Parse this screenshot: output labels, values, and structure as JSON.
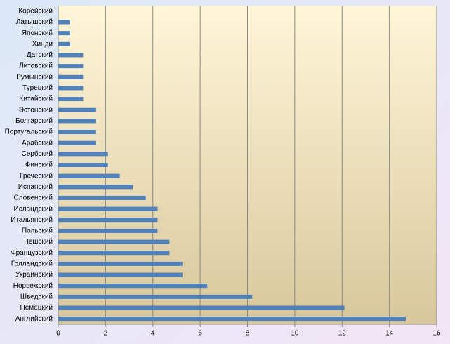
{
  "chart_data": {
    "type": "bar",
    "orientation": "horizontal",
    "categories": [
      "Корейский",
      "Латышский",
      "Японский",
      "Хинди",
      "Датский",
      "Литовский",
      "Румынский",
      "Турецкий",
      "Китайский",
      "Эстонский",
      "Болгарский",
      "Португальский",
      "Арабский",
      "Сербский",
      "Финский",
      "Греческий",
      "Испанский",
      "Словенский",
      "Исландский",
      "Итальянский",
      "Польский",
      "Чешский",
      "Французский",
      "Голландский",
      "Украинский",
      "Норвежский",
      "Шведский",
      "Немецкий",
      "Английский"
    ],
    "values": [
      0,
      0.5,
      0.5,
      0.5,
      1.05,
      1.05,
      1.05,
      1.05,
      1.05,
      1.6,
      1.6,
      1.6,
      1.6,
      2.1,
      2.1,
      2.6,
      3.15,
      3.7,
      4.2,
      4.2,
      4.2,
      4.7,
      4.7,
      5.25,
      5.25,
      6.3,
      8.2,
      12.1,
      14.7
    ],
    "color": "#4f81bd",
    "xlim": [
      0,
      16
    ],
    "xticks": [
      0,
      2,
      4,
      6,
      8,
      10,
      12,
      14,
      16
    ],
    "grid": true
  }
}
